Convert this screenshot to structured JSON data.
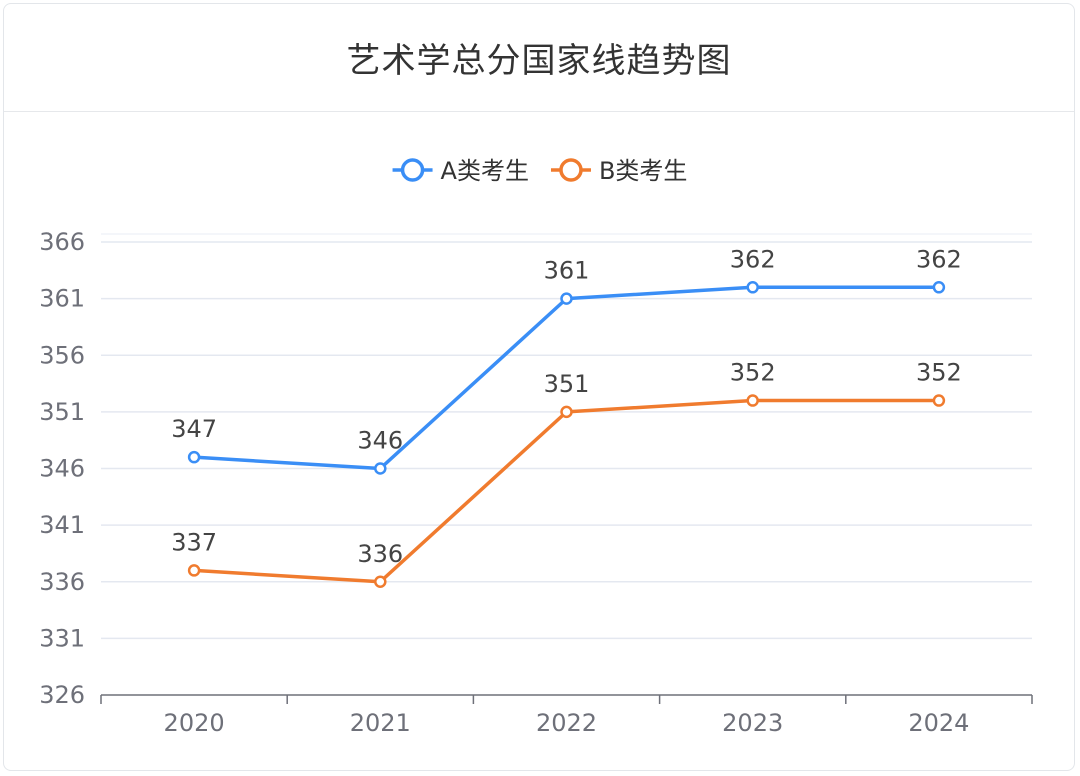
{
  "header": {
    "title": "艺术学总分国家线趋势图"
  },
  "chart_data": {
    "type": "line",
    "title": "艺术学总分国家线趋势图",
    "xlabel": "",
    "ylabel": "",
    "categories": [
      "2020",
      "2021",
      "2022",
      "2023",
      "2024"
    ],
    "yticks": [
      326,
      331,
      336,
      341,
      346,
      351,
      356,
      361,
      366
    ],
    "ylim": [
      326,
      366
    ],
    "grid": true,
    "legend_position": "top-center",
    "series": [
      {
        "name": "A类考生",
        "values": [
          347,
          346,
          361,
          362,
          362
        ],
        "color": "#3a8ef6"
      },
      {
        "name": "B类考生",
        "values": [
          337,
          336,
          351,
          352,
          352
        ],
        "color": "#f07b2e"
      }
    ]
  }
}
